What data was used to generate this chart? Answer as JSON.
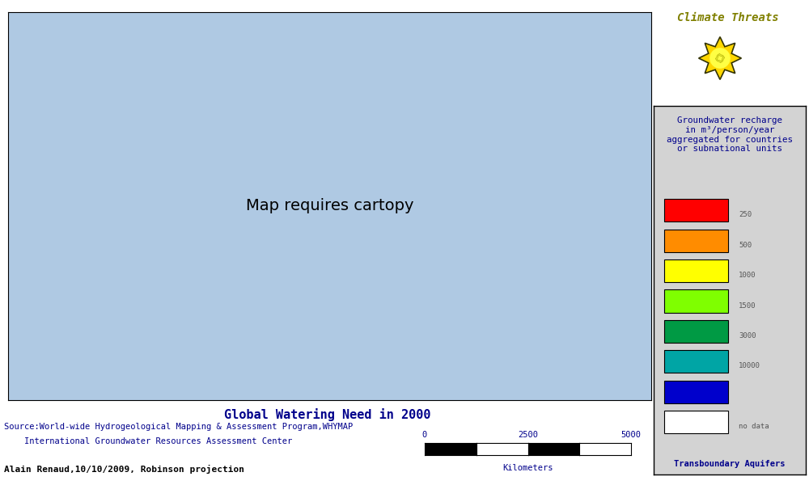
{
  "title": "Global Watering Need in 2000",
  "climate_threats_text": "Climate Threats",
  "legend_title": "Groundwater recharge\nin m³/person/year\naggregated for countries\nor subnational units",
  "legend_colors": [
    "#FF0000",
    "#FF8C00",
    "#FFFF00",
    "#7FFF00",
    "#009A44",
    "#00A5A5",
    "#0000CC",
    "#FFFFFF"
  ],
  "legend_values": [
    "250",
    "500",
    "1000",
    "1500",
    "3000",
    "10000",
    "",
    "no data"
  ],
  "transboundary_label": "Transboundary Aquifers",
  "source_line1": "Source:World-wide Hydrogeological Mapping & Assessment Program,WHYMAP",
  "source_line2": "    International Groundwater Resources Assessment Center",
  "author_line": "Alain Renaud,10/10/2009, Robinson projection",
  "scale_labels": [
    "0",
    "2500",
    "5000"
  ],
  "scale_label_km": "Kilometers",
  "map_bg": "#AFC9E3",
  "fig_bg": "#FFFFFF",
  "legend_bg": "#D3D3D3",
  "title_color": "#00008B",
  "source_color": "#00008B",
  "legend_title_color": "#00008B",
  "climate_color": "#808000",
  "transboundary_color": "#00008B",
  "country_colors": {
    "Canada": "#0000CC",
    "United States of America": "#009A44",
    "Mexico": "#FF8C00",
    "Guatemala": "#FF8C00",
    "Belize": "#FF0000",
    "Honduras": "#FF0000",
    "El Salvador": "#FF0000",
    "Nicaragua": "#FF8C00",
    "Costa Rica": "#009A44",
    "Panama": "#009A44",
    "Cuba": "#FFFF00",
    "Jamaica": "#FF0000",
    "Haiti": "#FF0000",
    "Dominican Republic": "#FF0000",
    "Puerto Rico": "#FF0000",
    "Trinidad and Tobago": "#009A44",
    "Greenland": "#FFFFFF",
    "Iceland": "#0000CC",
    "Colombia": "#009A44",
    "Venezuela": "#7FFF00",
    "Guyana": "#009A44",
    "Suriname": "#009A44",
    "Brazil": "#0000CC",
    "Ecuador": "#009A44",
    "Peru": "#FF8C00",
    "Bolivia": "#FF8C00",
    "Chile": "#00A5A5",
    "Argentina": "#0000CC",
    "Uruguay": "#009A44",
    "Paraguay": "#FF8C00",
    "United Kingdom": "#009A44",
    "Ireland": "#0000CC",
    "France": "#009A44",
    "Spain": "#FF8C00",
    "Portugal": "#FF8C00",
    "Germany": "#009A44",
    "Netherlands": "#FFFF00",
    "Belgium": "#7FFF00",
    "Luxembourg": "#7FFF00",
    "Switzerland": "#009A44",
    "Austria": "#009A44",
    "Italy": "#FF8C00",
    "Denmark": "#FFFF00",
    "Sweden": "#0000CC",
    "Norway": "#0000CC",
    "Finland": "#0000CC",
    "Poland": "#FFFF00",
    "Czech Republic": "#FFFF00",
    "Slovakia": "#FFFF00",
    "Hungary": "#FF8C00",
    "Romania": "#FFFF00",
    "Bulgaria": "#FF8C00",
    "Serbia": "#FF8C00",
    "Croatia": "#FF8C00",
    "Bosnia and Herzegovina": "#FF8C00",
    "Slovenia": "#009A44",
    "Albania": "#FF8C00",
    "North Macedonia": "#FF8C00",
    "Greece": "#FF8C00",
    "Turkey": "#FF8C00",
    "Ukraine": "#FFFF00",
    "Belarus": "#FFFF00",
    "Moldova": "#FF8C00",
    "Lithuania": "#FFFF00",
    "Latvia": "#FFFF00",
    "Estonia": "#009A44",
    "Russia": "#0000CC",
    "Kazakhstan": "#FFFF00",
    "Uzbekistan": "#FF0000",
    "Turkmenistan": "#FF0000",
    "Azerbaijan": "#FF8C00",
    "Georgia": "#009A44",
    "Armenia": "#FF8C00",
    "Tajikistan": "#FF0000",
    "Kyrgyzstan": "#FFFF00",
    "Afghanistan": "#FF0000",
    "Pakistan": "#FF0000",
    "India": "#FF8C00",
    "Nepal": "#009A44",
    "Bhutan": "#009A44",
    "Bangladesh": "#009A44",
    "Sri Lanka": "#009A44",
    "China": "#FFFF00",
    "Mongolia": "#FF0000",
    "North Korea": "#FFFF00",
    "South Korea": "#FF8C00",
    "Japan": "#009A44",
    "Myanmar": "#009A44",
    "Thailand": "#009A44",
    "Laos": "#009A44",
    "Vietnam": "#009A44",
    "Cambodia": "#FF8C00",
    "Malaysia": "#0000CC",
    "Indonesia": "#0000CC",
    "Philippines": "#009A44",
    "Papua New Guinea": "#0000CC",
    "Australia": "#0000CC",
    "New Zealand": "#0000CC",
    "Morocco": "#FF8C00",
    "Algeria": "#FF0000",
    "Tunisia": "#FF0000",
    "Libya": "#FF0000",
    "Egypt": "#FF0000",
    "Sudan": "#FF0000",
    "South Sudan": "#009A44",
    "Ethiopia": "#FF8C00",
    "Eritrea": "#FF0000",
    "Djibouti": "#FF0000",
    "Somalia": "#FF0000",
    "Kenya": "#FF8C00",
    "Uganda": "#009A44",
    "Tanzania": "#FF8C00",
    "Rwanda": "#009A44",
    "Burundi": "#009A44",
    "Democratic Republic of the Congo": "#009A44",
    "Republic of the Congo": "#009A44",
    "Central African Republic": "#009A44",
    "Cameroon": "#009A44",
    "Nigeria": "#FF8C00",
    "Niger": "#FF0000",
    "Chad": "#FF0000",
    "Mali": "#FF0000",
    "Mauritania": "#FF0000",
    "Senegal": "#FF8C00",
    "Gambia": "#FF8C00",
    "Guinea-Bissau": "#009A44",
    "Guinea": "#009A44",
    "Sierra Leone": "#009A44",
    "Liberia": "#009A44",
    "Ivory Coast": "#FF8C00",
    "Ghana": "#FF8C00",
    "Togo": "#FF8C00",
    "Benin": "#FF8C00",
    "Burkina Faso": "#FF8C00",
    "Angola": "#009A44",
    "Zambia": "#009A44",
    "Zimbabwe": "#FF8C00",
    "Mozambique": "#FF8C00",
    "Malawi": "#FF8C00",
    "Botswana": "#FF0000",
    "Namibia": "#FF0000",
    "South Africa": "#FF8C00",
    "Lesotho": "#FF8C00",
    "Swaziland": "#FF8C00",
    "Gabon": "#009A44",
    "Equatorial Guinea": "#009A44",
    "Madagascar": "#009A44",
    "Saudi Arabia": "#FF0000",
    "Yemen": "#FF0000",
    "Oman": "#FF0000",
    "United Arab Emirates": "#FF0000",
    "Qatar": "#FF0000",
    "Bahrain": "#FF0000",
    "Kuwait": "#FF0000",
    "Iraq": "#FF0000",
    "Iran": "#FF0000",
    "Syria": "#FF0000",
    "Jordan": "#FF0000",
    "Israel": "#FF0000",
    "Lebanon": "#FF8C00",
    "Cyprus": "#FF8C00",
    "Singapore": "#009A44",
    "Brunei": "#009A44",
    "East Timor": "#009A44"
  }
}
